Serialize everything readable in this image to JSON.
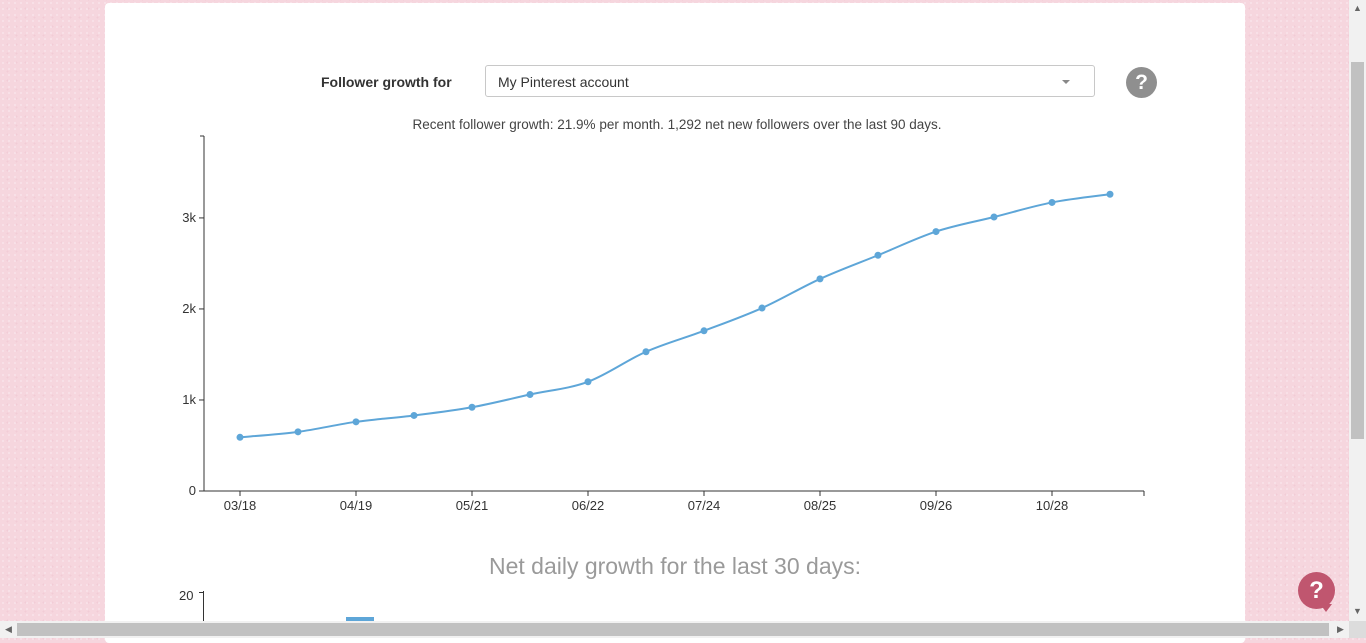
{
  "header": {
    "label": "Follower growth for",
    "account_select": {
      "selected": "My Pinterest account"
    },
    "help_icon": "?"
  },
  "summary": "Recent follower growth: 21.9% per month. 1,292 net new followers over the last 90 days.",
  "net_daily": {
    "title": "Net daily growth for the last 30 days:",
    "y_tick": "20"
  },
  "help_button": "?",
  "colors": {
    "line": "#5ea6d8",
    "help_fab": "#c0566f",
    "help_icon": "#8f8f8f"
  },
  "chart_data": {
    "type": "line",
    "title": "",
    "xlabel": "",
    "ylabel": "",
    "x_tick_labels": [
      "03/18",
      "04/19",
      "05/21",
      "06/22",
      "07/24",
      "08/25",
      "09/26",
      "10/28"
    ],
    "y_tick_labels": [
      "0",
      "1k",
      "2k",
      "3k"
    ],
    "ylim": [
      0,
      3900
    ],
    "series": [
      {
        "values": [
          {
            "x": "03/18",
            "y": 590
          },
          {
            "x": "04/03",
            "y": 650
          },
          {
            "x": "04/19",
            "y": 760
          },
          {
            "x": "05/05",
            "y": 830
          },
          {
            "x": "05/21",
            "y": 920
          },
          {
            "x": "06/06",
            "y": 1060
          },
          {
            "x": "06/22",
            "y": 1200
          },
          {
            "x": "07/08",
            "y": 1530
          },
          {
            "x": "07/24",
            "y": 1760
          },
          {
            "x": "08/09",
            "y": 2010
          },
          {
            "x": "08/25",
            "y": 2330
          },
          {
            "x": "09/10",
            "y": 2590
          },
          {
            "x": "09/26",
            "y": 2850
          },
          {
            "x": "10/12",
            "y": 3010
          },
          {
            "x": "10/28",
            "y": 3170
          },
          {
            "x": "11/13",
            "y": 3260
          }
        ]
      }
    ],
    "grid": false,
    "legend": "none"
  }
}
